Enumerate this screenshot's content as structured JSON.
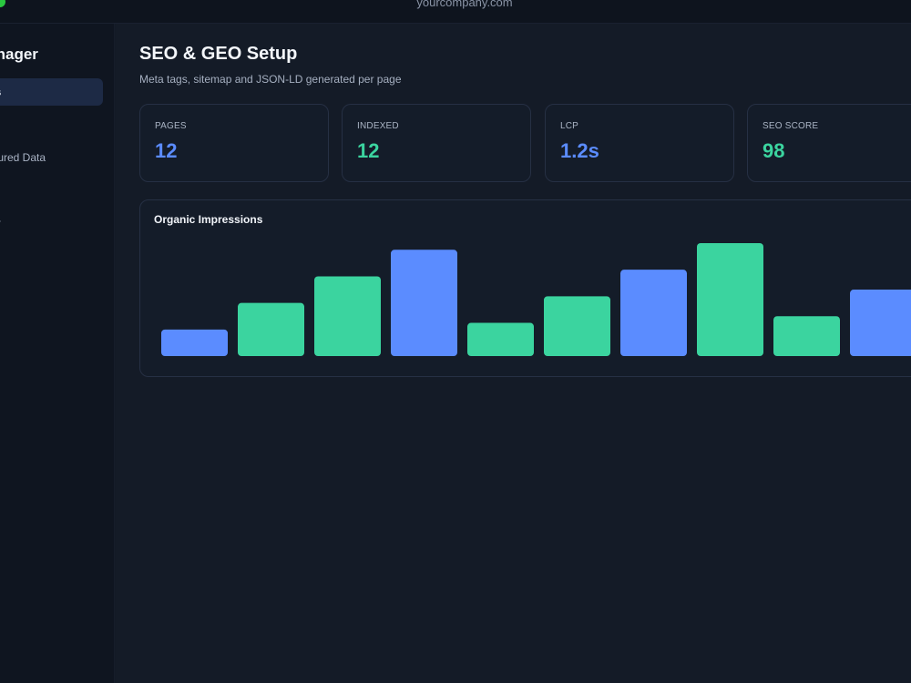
{
  "window": {
    "url": "yourcompany.com"
  },
  "sidebar": {
    "title": "Manager",
    "items": [
      {
        "label": "es",
        "active": true
      },
      {
        "label": "ctured Data",
        "active": false
      },
      {
        "label": "a",
        "active": false
      },
      {
        "label": "py",
        "active": false
      }
    ]
  },
  "header": {
    "title": "SEO & GEO Setup",
    "subtitle": "Meta tags, sitemap and JSON-LD generated per page"
  },
  "stats": [
    {
      "label": "PAGES",
      "value": "12",
      "color": "#5b8cff"
    },
    {
      "label": "INDEXED",
      "value": "12",
      "color": "#3bd49f"
    },
    {
      "label": "LCP",
      "value": "1.2s",
      "color": "#5b8cff"
    },
    {
      "label": "SEO SCORE",
      "value": "98",
      "color": "#3bd49f"
    }
  ],
  "chart_data": {
    "type": "bar",
    "title": "Organic Impressions",
    "values": [
      20,
      40,
      60,
      80,
      25,
      45,
      65,
      85,
      30,
      50
    ],
    "colors": [
      "#5b8cff",
      "#3bd49f",
      "#3bd49f",
      "#5b8cff",
      "#3bd49f",
      "#3bd49f",
      "#5b8cff",
      "#3bd49f",
      "#3bd49f",
      "#5b8cff"
    ],
    "ylim": [
      0,
      85
    ],
    "grid": false,
    "legend": "none"
  }
}
